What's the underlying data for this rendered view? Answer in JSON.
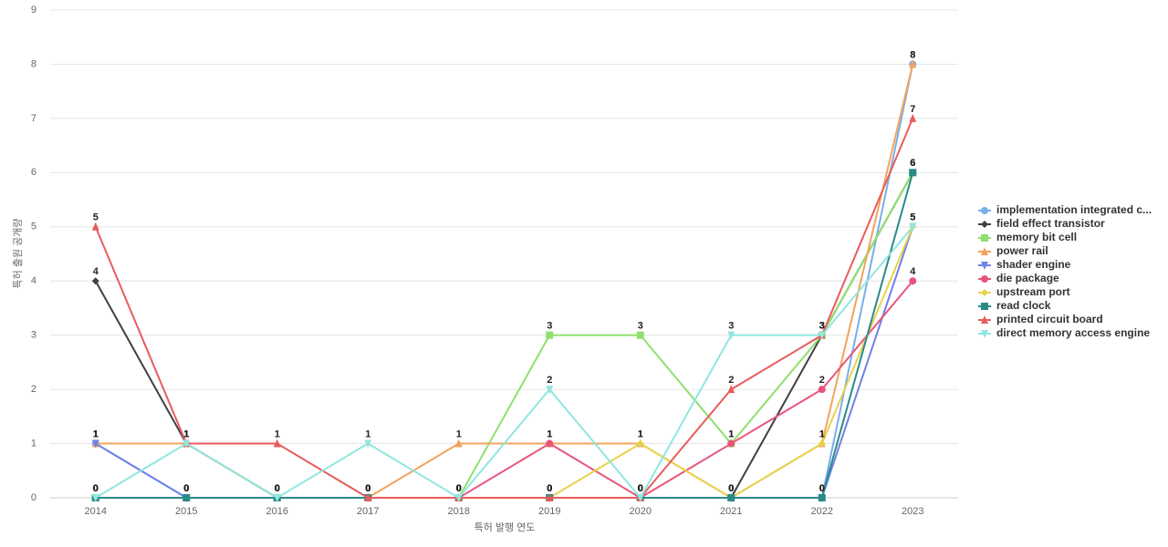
{
  "chart_data": {
    "type": "line",
    "x_label": "특허 발행 연도",
    "y_label": "특허 출원 공개량",
    "categories": [
      "2014",
      "2015",
      "2016",
      "2017",
      "2018",
      "2019",
      "2020",
      "2021",
      "2022",
      "2023"
    ],
    "ylim": [
      0,
      9
    ],
    "yticks": [
      0,
      1,
      2,
      3,
      4,
      5,
      6,
      7,
      8,
      9
    ],
    "grid": true,
    "series": [
      {
        "name": "implementation integrated c...",
        "color": "#7aaee8",
        "marker": "circle",
        "values": [
          1,
          0,
          0,
          0,
          0,
          0,
          0,
          0,
          0,
          8
        ]
      },
      {
        "name": "field effect transistor",
        "color": "#404040",
        "marker": "diamond",
        "values": [
          4,
          1,
          0,
          0,
          0,
          0,
          0,
          0,
          3,
          6
        ]
      },
      {
        "name": "memory bit cell",
        "color": "#8fe06e",
        "marker": "square",
        "values": [
          0,
          0,
          0,
          0,
          0,
          3,
          3,
          1,
          3,
          6
        ]
      },
      {
        "name": "power rail",
        "color": "#f2a45c",
        "marker": "triangle",
        "values": [
          1,
          1,
          0,
          0,
          1,
          1,
          1,
          0,
          1,
          8
        ]
      },
      {
        "name": "shader engine",
        "color": "#7080e6",
        "marker": "down",
        "values": [
          1,
          0,
          0,
          0,
          0,
          0,
          0,
          0,
          0,
          5
        ]
      },
      {
        "name": "die package",
        "color": "#e8557c",
        "marker": "circle",
        "values": [
          0,
          0,
          0,
          0,
          0,
          1,
          0,
          1,
          2,
          4
        ]
      },
      {
        "name": "upstream port",
        "color": "#e8d24c",
        "marker": "diamond",
        "values": [
          0,
          0,
          0,
          0,
          0,
          0,
          1,
          0,
          1,
          5
        ]
      },
      {
        "name": "read clock",
        "color": "#2a8a88",
        "marker": "square",
        "values": [
          0,
          0,
          0,
          0,
          0,
          0,
          0,
          0,
          0,
          6
        ]
      },
      {
        "name": "printed circuit board",
        "color": "#e85c5c",
        "marker": "triangle",
        "values": [
          5,
          1,
          1,
          0,
          0,
          0,
          0,
          2,
          3,
          7
        ]
      },
      {
        "name": "direct memory access engine",
        "color": "#90e6e0",
        "marker": "down",
        "values": [
          0,
          1,
          0,
          1,
          0,
          2,
          0,
          3,
          3,
          5
        ]
      }
    ]
  }
}
